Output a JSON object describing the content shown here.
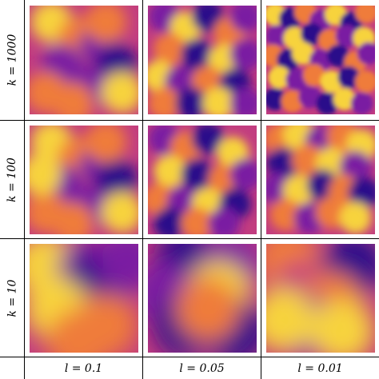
{
  "figure": {
    "row_labels": [
      "k = 1000",
      "k = 100",
      "k = 10"
    ],
    "col_labels": [
      "l = 0.1",
      "l = 0.05",
      "l = 0.01"
    ]
  },
  "colormap": {
    "dark": "#2a0c8a",
    "purple": "#7a1fa2",
    "magenta": "#c23d80",
    "orange": "#ef7c3a",
    "yellow": "#f7d33c"
  },
  "panels": [
    {
      "row": "k = 1000",
      "col": "l = 0.1",
      "blobs": [
        [
          0.2,
          0.15,
          "yellow"
        ],
        [
          0.45,
          0.3,
          "orange"
        ],
        [
          0.65,
          0.35,
          "purple"
        ],
        [
          0.8,
          0.55,
          "dark"
        ],
        [
          0.3,
          0.55,
          "purple"
        ],
        [
          0.15,
          0.8,
          "orange"
        ],
        [
          0.55,
          0.75,
          "purple"
        ],
        [
          0.85,
          0.8,
          "yellow"
        ],
        [
          0.4,
          0.9,
          "orange"
        ],
        [
          0.7,
          0.15,
          "orange"
        ]
      ]
    },
    {
      "row": "k = 1000",
      "col": "l = 0.05",
      "blobs": [
        [
          0.15,
          0.1,
          "purple"
        ],
        [
          0.35,
          0.2,
          "yellow"
        ],
        [
          0.55,
          0.1,
          "dark"
        ],
        [
          0.75,
          0.25,
          "orange"
        ],
        [
          0.9,
          0.1,
          "purple"
        ],
        [
          0.2,
          0.4,
          "orange"
        ],
        [
          0.45,
          0.45,
          "dark"
        ],
        [
          0.7,
          0.5,
          "yellow"
        ],
        [
          0.9,
          0.45,
          "purple"
        ],
        [
          0.1,
          0.65,
          "yellow"
        ],
        [
          0.3,
          0.7,
          "purple"
        ],
        [
          0.55,
          0.7,
          "orange"
        ],
        [
          0.8,
          0.72,
          "dark"
        ],
        [
          0.15,
          0.9,
          "orange"
        ],
        [
          0.4,
          0.9,
          "dark"
        ],
        [
          0.65,
          0.9,
          "yellow"
        ],
        [
          0.9,
          0.9,
          "purple"
        ]
      ]
    },
    {
      "row": "k = 1000",
      "col": "l = 0.01",
      "blobs": [
        [
          0.08,
          0.08,
          "yellow"
        ],
        [
          0.22,
          0.12,
          "dark"
        ],
        [
          0.36,
          0.06,
          "orange"
        ],
        [
          0.5,
          0.14,
          "purple"
        ],
        [
          0.64,
          0.08,
          "yellow"
        ],
        [
          0.78,
          0.16,
          "dark"
        ],
        [
          0.92,
          0.06,
          "orange"
        ],
        [
          0.1,
          0.28,
          "purple"
        ],
        [
          0.26,
          0.3,
          "yellow"
        ],
        [
          0.42,
          0.26,
          "dark"
        ],
        [
          0.58,
          0.32,
          "orange"
        ],
        [
          0.74,
          0.28,
          "purple"
        ],
        [
          0.9,
          0.3,
          "yellow"
        ],
        [
          0.06,
          0.46,
          "orange"
        ],
        [
          0.2,
          0.5,
          "dark"
        ],
        [
          0.34,
          0.44,
          "yellow"
        ],
        [
          0.5,
          0.5,
          "purple"
        ],
        [
          0.66,
          0.46,
          "dark"
        ],
        [
          0.82,
          0.52,
          "orange"
        ],
        [
          0.94,
          0.44,
          "purple"
        ],
        [
          0.12,
          0.66,
          "yellow"
        ],
        [
          0.28,
          0.68,
          "purple"
        ],
        [
          0.44,
          0.64,
          "orange"
        ],
        [
          0.6,
          0.7,
          "yellow"
        ],
        [
          0.76,
          0.66,
          "dark"
        ],
        [
          0.92,
          0.7,
          "orange"
        ],
        [
          0.08,
          0.86,
          "dark"
        ],
        [
          0.24,
          0.88,
          "orange"
        ],
        [
          0.4,
          0.84,
          "purple"
        ],
        [
          0.56,
          0.9,
          "dark"
        ],
        [
          0.72,
          0.86,
          "yellow"
        ],
        [
          0.88,
          0.9,
          "purple"
        ]
      ]
    },
    {
      "row": "k = 100",
      "col": "l = 0.1",
      "blobs": [
        [
          0.2,
          0.15,
          "yellow"
        ],
        [
          0.45,
          0.3,
          "orange"
        ],
        [
          0.65,
          0.35,
          "purple"
        ],
        [
          0.8,
          0.5,
          "dark"
        ],
        [
          0.3,
          0.55,
          "purple"
        ],
        [
          0.15,
          0.8,
          "orange"
        ],
        [
          0.55,
          0.75,
          "purple"
        ],
        [
          0.85,
          0.8,
          "yellow"
        ],
        [
          0.4,
          0.9,
          "orange"
        ],
        [
          0.7,
          0.15,
          "orange"
        ],
        [
          0.1,
          0.45,
          "yellow"
        ]
      ]
    },
    {
      "row": "k = 100",
      "col": "l = 0.05",
      "blobs": [
        [
          0.15,
          0.12,
          "purple"
        ],
        [
          0.35,
          0.2,
          "orange"
        ],
        [
          0.55,
          0.12,
          "dark"
        ],
        [
          0.78,
          0.25,
          "yellow"
        ],
        [
          0.2,
          0.42,
          "yellow"
        ],
        [
          0.45,
          0.45,
          "dark"
        ],
        [
          0.7,
          0.5,
          "orange"
        ],
        [
          0.9,
          0.45,
          "purple"
        ],
        [
          0.1,
          0.68,
          "orange"
        ],
        [
          0.32,
          0.7,
          "purple"
        ],
        [
          0.55,
          0.72,
          "yellow"
        ],
        [
          0.8,
          0.72,
          "dark"
        ],
        [
          0.2,
          0.9,
          "dark"
        ],
        [
          0.45,
          0.9,
          "orange"
        ],
        [
          0.7,
          0.9,
          "purple"
        ]
      ]
    },
    {
      "row": "k = 100",
      "col": "l = 0.01",
      "blobs": [
        [
          0.12,
          0.12,
          "orange"
        ],
        [
          0.3,
          0.08,
          "yellow"
        ],
        [
          0.5,
          0.15,
          "purple"
        ],
        [
          0.7,
          0.1,
          "orange"
        ],
        [
          0.88,
          0.18,
          "yellow"
        ],
        [
          0.15,
          0.35,
          "dark"
        ],
        [
          0.38,
          0.32,
          "orange"
        ],
        [
          0.6,
          0.35,
          "yellow"
        ],
        [
          0.82,
          0.38,
          "purple"
        ],
        [
          0.1,
          0.58,
          "purple"
        ],
        [
          0.3,
          0.6,
          "yellow"
        ],
        [
          0.52,
          0.55,
          "dark"
        ],
        [
          0.72,
          0.6,
          "orange"
        ],
        [
          0.9,
          0.62,
          "dark"
        ],
        [
          0.18,
          0.82,
          "orange"
        ],
        [
          0.4,
          0.85,
          "purple"
        ],
        [
          0.6,
          0.8,
          "orange"
        ],
        [
          0.82,
          0.85,
          "yellow"
        ]
      ]
    },
    {
      "row": "k = 10",
      "col": "l = 0.1",
      "blobs": [
        [
          0.15,
          0.2,
          "yellow"
        ],
        [
          0.55,
          0.25,
          "purple"
        ],
        [
          0.65,
          0.35,
          "dark"
        ],
        [
          0.25,
          0.6,
          "yellow"
        ],
        [
          0.7,
          0.75,
          "orange"
        ],
        [
          0.45,
          0.9,
          "orange"
        ],
        [
          0.9,
          0.15,
          "purple"
        ]
      ]
    },
    {
      "row": "k = 10",
      "col": "l = 0.05",
      "blobs": [
        [
          0.35,
          0.15,
          "dark"
        ],
        [
          0.75,
          0.2,
          "purple"
        ],
        [
          0.15,
          0.45,
          "purple"
        ],
        [
          0.65,
          0.45,
          "yellow"
        ],
        [
          0.35,
          0.75,
          "dark"
        ],
        [
          0.8,
          0.8,
          "dark"
        ],
        [
          0.55,
          0.6,
          "orange"
        ]
      ]
    },
    {
      "row": "k = 10",
      "col": "l = 0.01",
      "blobs": [
        [
          0.2,
          0.15,
          "orange"
        ],
        [
          0.8,
          0.2,
          "dark"
        ],
        [
          0.35,
          0.45,
          "magenta"
        ],
        [
          0.6,
          0.55,
          "orange"
        ],
        [
          0.35,
          0.75,
          "purple"
        ],
        [
          0.7,
          0.8,
          "yellow"
        ],
        [
          0.15,
          0.7,
          "yellow"
        ]
      ]
    }
  ]
}
